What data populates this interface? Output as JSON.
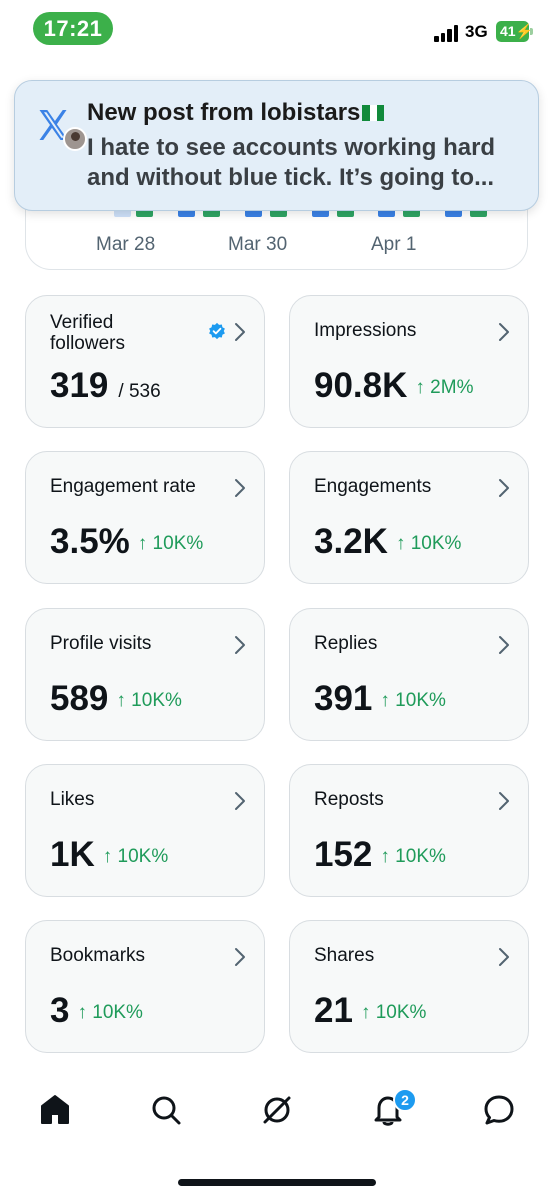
{
  "status_bar": {
    "time": "17:21",
    "network": "3G",
    "battery": "41"
  },
  "notification": {
    "app_icon": "x-logo-icon",
    "title": "New post from lobistars",
    "body": "I hate to see accounts working hard and without blue tick. It’s going to..."
  },
  "chart": {
    "x_labels": [
      "Mar 28",
      "Mar 30",
      "Apr 1"
    ],
    "colors": {
      "series_a": "#3b82e6",
      "series_b": "#2fa564"
    }
  },
  "metrics": [
    {
      "label": "Verified followers",
      "value": "319",
      "sub": "/ 536",
      "delta": "",
      "verified": true
    },
    {
      "label": "Impressions",
      "value": "90.8K",
      "sub": "",
      "delta": "↑ 2M%"
    },
    {
      "label": "Engagement rate",
      "value": "3.5%",
      "sub": "",
      "delta": "↑ 10K%"
    },
    {
      "label": "Engagements",
      "value": "3.2K",
      "sub": "",
      "delta": "↑ 10K%"
    },
    {
      "label": "Profile visits",
      "value": "589",
      "sub": "",
      "delta": "↑ 10K%"
    },
    {
      "label": "Replies",
      "value": "391",
      "sub": "",
      "delta": "↑ 10K%"
    },
    {
      "label": "Likes",
      "value": "1K",
      "sub": "",
      "delta": "↑ 10K%"
    },
    {
      "label": "Reposts",
      "value": "152",
      "sub": "",
      "delta": "↑ 10K%"
    },
    {
      "label": "Bookmarks",
      "value": "3",
      "sub": "",
      "delta": "↑ 10K%"
    },
    {
      "label": "Shares",
      "value": "21",
      "sub": "",
      "delta": "↑ 10K%"
    }
  ],
  "bottom_nav": {
    "items": [
      "home-icon",
      "search-icon",
      "grok-icon",
      "notifications-icon",
      "messages-icon"
    ],
    "notification_count": "2"
  },
  "colors": {
    "accent": "#1d9bf0",
    "positive": "#1f9b5a",
    "status_green": "#3cb04a"
  }
}
